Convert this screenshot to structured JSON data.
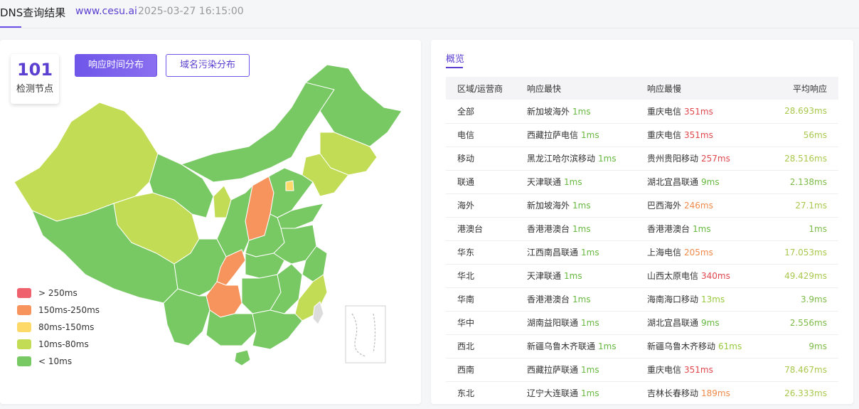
{
  "header": {
    "title": "DNS查询结果",
    "domain": "www.cesu.ai",
    "timestamp": "2025-03-27 16:15:00"
  },
  "summary": {
    "node_count": "101",
    "node_label": "检测节点"
  },
  "buttons": {
    "latency_map": "响应时间分布",
    "pollution_map": "域名污染分布"
  },
  "legend": [
    {
      "label": "> 250ms",
      "color": "#f0616e"
    },
    {
      "label": "150ms-250ms",
      "color": "#f7935c"
    },
    {
      "label": "80ms-150ms",
      "color": "#fdd96a"
    },
    {
      "label": "10ms-80ms",
      "color": "#c2dd55"
    },
    {
      "label": "< 10ms",
      "color": "#78c964"
    }
  ],
  "overview": {
    "tab_label": "概览",
    "columns": [
      "区域/运营商",
      "响应最快",
      "响应最慢",
      "平均响应"
    ],
    "rows": [
      {
        "region": "全部",
        "fast_node": "新加坡海外",
        "fast_ms": "1ms",
        "slow_node": "重庆电信",
        "slow_ms": "351ms",
        "slow_level": "red",
        "avg": "28.693ms",
        "avg_level": "l"
      },
      {
        "region": "电信",
        "fast_node": "西藏拉萨电信",
        "fast_ms": "1ms",
        "slow_node": "重庆电信",
        "slow_ms": "351ms",
        "slow_level": "red",
        "avg": "56ms",
        "avg_level": "l"
      },
      {
        "region": "移动",
        "fast_node": "黑龙江哈尔滨移动",
        "fast_ms": "1ms",
        "slow_node": "贵州贵阳移动",
        "slow_ms": "257ms",
        "slow_level": "red",
        "avg": "28.516ms",
        "avg_level": "l"
      },
      {
        "region": "联通",
        "fast_node": "天津联通",
        "fast_ms": "1ms",
        "slow_node": "湖北宜昌联通",
        "slow_ms": "9ms",
        "slow_level": "green",
        "avg": "2.138ms",
        "avg_level": "g"
      },
      {
        "region": "海外",
        "fast_node": "新加坡海外",
        "fast_ms": "1ms",
        "slow_node": "巴西海外",
        "slow_ms": "246ms",
        "slow_level": "orange",
        "avg": "27.1ms",
        "avg_level": "l"
      },
      {
        "region": "港澳台",
        "fast_node": "香港港澳台",
        "fast_ms": "1ms",
        "slow_node": "香港港澳台",
        "slow_ms": "1ms",
        "slow_level": "green",
        "avg": "1ms",
        "avg_level": "g"
      },
      {
        "region": "华东",
        "fast_node": "江西南昌联通",
        "fast_ms": "1ms",
        "slow_node": "上海电信",
        "slow_ms": "205ms",
        "slow_level": "orange",
        "avg": "17.053ms",
        "avg_level": "l"
      },
      {
        "region": "华北",
        "fast_node": "天津联通",
        "fast_ms": "1ms",
        "slow_node": "山西太原电信",
        "slow_ms": "340ms",
        "slow_level": "red",
        "avg": "49.429ms",
        "avg_level": "l"
      },
      {
        "region": "华南",
        "fast_node": "香港港澳台",
        "fast_ms": "1ms",
        "slow_node": "海南海口移动",
        "slow_ms": "13ms",
        "slow_level": "lgreen",
        "avg": "3.9ms",
        "avg_level": "g"
      },
      {
        "region": "华中",
        "fast_node": "湖南益阳联通",
        "fast_ms": "1ms",
        "slow_node": "湖北宜昌联通",
        "slow_ms": "9ms",
        "slow_level": "green",
        "avg": "2.556ms",
        "avg_level": "g"
      },
      {
        "region": "西北",
        "fast_node": "新疆乌鲁木齐联通",
        "fast_ms": "1ms",
        "slow_node": "新疆乌鲁木齐移动",
        "slow_ms": "61ms",
        "slow_level": "lgreen",
        "avg": "9ms",
        "avg_level": "g"
      },
      {
        "region": "西南",
        "fast_node": "西藏拉萨联通",
        "fast_ms": "1ms",
        "slow_node": "重庆电信",
        "slow_ms": "351ms",
        "slow_level": "red",
        "avg": "78.467ms",
        "avg_level": "l"
      },
      {
        "region": "东北",
        "fast_node": "辽宁大连联通",
        "fast_ms": "1ms",
        "slow_node": "吉林长春移动",
        "slow_ms": "189ms",
        "slow_level": "orange",
        "avg": "26.333ms",
        "avg_level": "l"
      }
    ]
  }
}
